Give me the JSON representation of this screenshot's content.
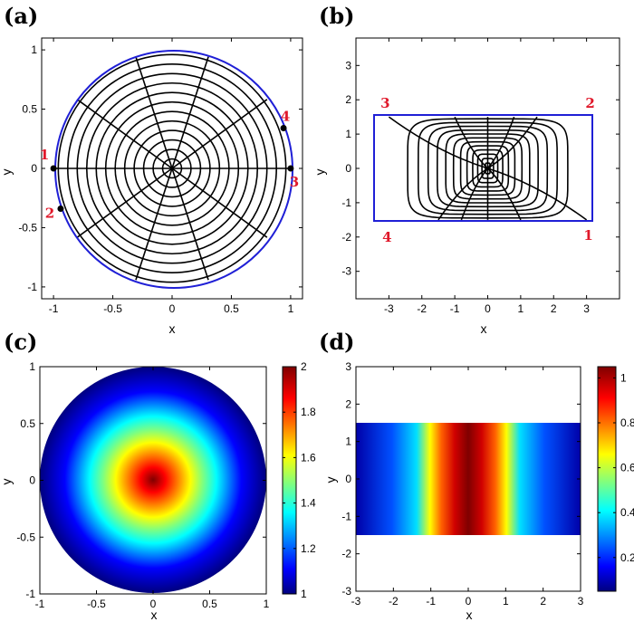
{
  "colors": {
    "mesh": "#000000",
    "boundary": "#1f1fd6",
    "vertex_label": "#e0182a"
  },
  "chart_data": [
    {
      "panel": "(a)",
      "type": "scatter",
      "xlabel": "x",
      "ylabel": "y",
      "xlim": [
        -1.1,
        1.1
      ],
      "ylim": [
        -1.1,
        1.1
      ],
      "xticks": [
        -1,
        -0.5,
        0,
        0.5,
        1
      ],
      "yticks": [
        -1,
        -0.5,
        0,
        0.5,
        1
      ],
      "xtick_labels": [
        "-1",
        "-0.5",
        "0",
        "0.5",
        "1"
      ],
      "ytick_labels": [
        "-1",
        "-0.5",
        "0",
        "0.5",
        "1"
      ],
      "grid": false,
      "boundary": "circle of radius 1",
      "mesh_rings": 12,
      "mesh_spokes": 10,
      "points": [
        {
          "label": "1",
          "x": -1.0,
          "y": 0.0
        },
        {
          "label": "2",
          "x": -0.94,
          "y": -0.34
        },
        {
          "label": "3",
          "x": 1.0,
          "y": 0.0
        },
        {
          "label": "4",
          "x": 0.94,
          "y": 0.34
        }
      ]
    },
    {
      "panel": "(b)",
      "type": "line",
      "xlabel": "x",
      "ylabel": "y",
      "xlim": [
        -4,
        4
      ],
      "ylim": [
        -3.8,
        3.8
      ],
      "xticks": [
        -3,
        -2,
        -1,
        0,
        1,
        2,
        3
      ],
      "yticks": [
        -3,
        -2,
        -1,
        0,
        1,
        2,
        3
      ],
      "xtick_labels": [
        "-3",
        "-2",
        "-1",
        "0",
        "1",
        "2",
        "3"
      ],
      "ytick_labels": [
        "-3",
        "-2",
        "-1",
        "0",
        "1",
        "2",
        "3"
      ],
      "grid": false,
      "rectangle": {
        "x": [
          -3,
          3
        ],
        "y": [
          -1.5,
          1.5
        ]
      },
      "mesh_rings": 12,
      "mesh_spokes": 10,
      "corners": [
        {
          "label": "1",
          "x": 3,
          "y": -1.5
        },
        {
          "label": "2",
          "x": 3,
          "y": 1.5
        },
        {
          "label": "3",
          "x": -3,
          "y": 1.5
        },
        {
          "label": "4",
          "x": -3,
          "y": -1.5
        }
      ]
    },
    {
      "panel": "(c)",
      "type": "heatmap",
      "xlabel": "x",
      "ylabel": "y",
      "xlim": [
        -1,
        1
      ],
      "ylim": [
        -1,
        1
      ],
      "xticks": [
        -1,
        -0.5,
        0,
        0.5,
        1
      ],
      "yticks": [
        -1,
        -0.5,
        0,
        0.5,
        1
      ],
      "xtick_labels": [
        "-1",
        "-0.5",
        "0",
        "0.5",
        "1"
      ],
      "ytick_labels": [
        "-1",
        "-0.5",
        "0",
        "0.5",
        "1"
      ],
      "colorbar": {
        "min": 1,
        "max": 2,
        "ticks": [
          1,
          1.2,
          1.4,
          1.6,
          1.8,
          2
        ],
        "tick_labels": [
          "1",
          "1.2",
          "1.4",
          "1.6",
          "1.8",
          "2"
        ]
      },
      "field": "value 2 at centre decreasing radially to 1 at the unit-circle boundary"
    },
    {
      "panel": "(d)",
      "type": "heatmap",
      "xlabel": "x",
      "ylabel": "y",
      "xlim": [
        -3,
        3
      ],
      "ylim": [
        -3,
        3
      ],
      "xticks": [
        -3,
        -2,
        -1,
        0,
        1,
        2,
        3
      ],
      "yticks": [
        -3,
        -2,
        -1,
        0,
        1,
        2,
        3
      ],
      "xtick_labels": [
        "-3",
        "-2",
        "-1",
        "0",
        "1",
        "2",
        "3"
      ],
      "ytick_labels": [
        "-3",
        "-2",
        "-1",
        "0",
        "1",
        "2",
        "3"
      ],
      "rectangle": {
        "x": [
          -3,
          3
        ],
        "y": [
          -1.5,
          1.5
        ]
      },
      "colorbar": {
        "min": 0.05,
        "max": 1.05,
        "ticks": [
          0.2,
          0.4,
          0.6,
          0.8,
          1
        ],
        "tick_labels": [
          "0.2",
          "0.4",
          "0.6",
          "0.8",
          "1"
        ]
      },
      "field": "value ~1.05 along x = 0 decreasing symmetrically to ~0.05 at x = ±3, constant in y"
    }
  ]
}
